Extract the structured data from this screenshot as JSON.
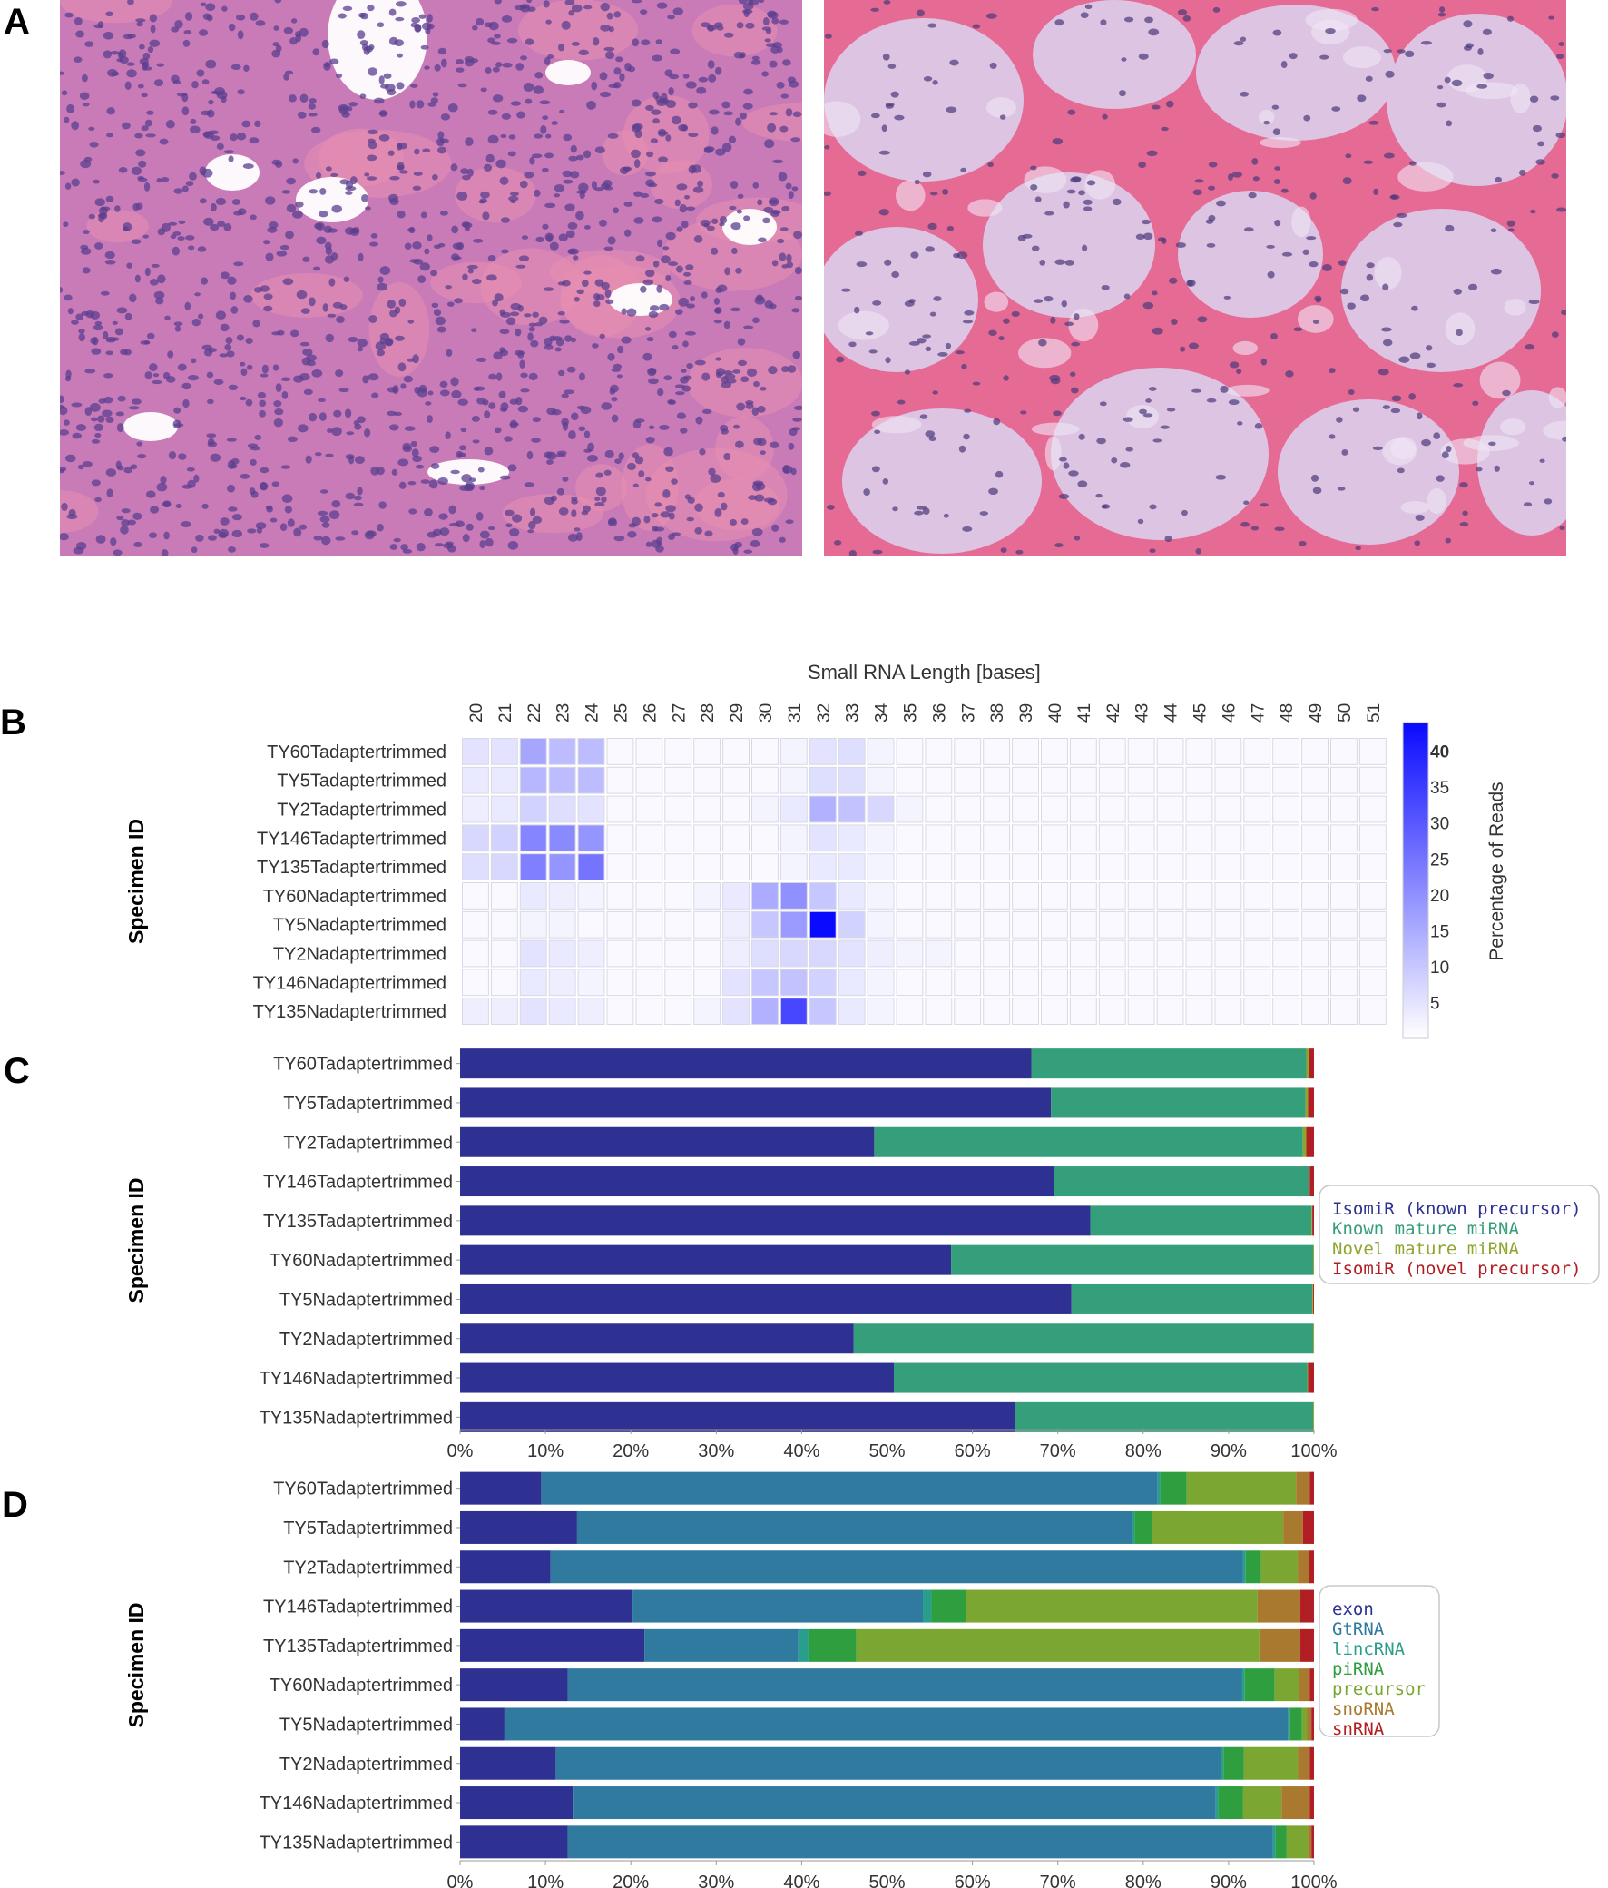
{
  "panels": {
    "a": "A",
    "b": "B",
    "c": "C",
    "d": "D"
  },
  "micrographs": [
    {
      "id": "left",
      "colors": {
        "background": "#c97bb8",
        "nuclei": "#5b3f8f",
        "stroma": "#e78fb0",
        "lumen": "#ffffff"
      }
    },
    {
      "id": "right",
      "colors": {
        "background": "#e5cde8",
        "colloid": "#ddc4e3",
        "stroma": "#e56a94",
        "nuclei": "#4b3a7a"
      }
    }
  ],
  "chart_data": [
    {
      "id": "B",
      "type": "heatmap",
      "title": "Small RNA Length [bases]",
      "ylabel": "Specimen ID",
      "x_categories": [
        "20",
        "21",
        "22",
        "23",
        "24",
        "25",
        "26",
        "27",
        "28",
        "29",
        "30",
        "31",
        "32",
        "33",
        "34",
        "35",
        "36",
        "37",
        "38",
        "39",
        "40",
        "41",
        "42",
        "43",
        "44",
        "45",
        "46",
        "47",
        "48",
        "49",
        "50",
        "51"
      ],
      "y_categories": [
        "TY60Tadaptertrimmed",
        "TY5Tadaptertrimmed",
        "TY2Tadaptertrimmed",
        "TY146Tadaptertrimmed",
        "TY135Tadaptertrimmed",
        "TY60Nadaptertrimmed",
        "TY5Nadaptertrimmed",
        "TY2Nadaptertrimmed",
        "TY146Nadaptertrimmed",
        "TY135Nadaptertrimmed"
      ],
      "values": [
        [
          5,
          5,
          16,
          12,
          12,
          1,
          1,
          1,
          1,
          1,
          1,
          2,
          5,
          6,
          2,
          1,
          1,
          1,
          1,
          1,
          1,
          1,
          1,
          1,
          1,
          1,
          1,
          1,
          1,
          1,
          1,
          1
        ],
        [
          4,
          4,
          13,
          12,
          12,
          1,
          1,
          1,
          1,
          1,
          1,
          2,
          6,
          6,
          2,
          1,
          1,
          1,
          1,
          1,
          1,
          1,
          1,
          1,
          1,
          1,
          1,
          1,
          1,
          1,
          1,
          1
        ],
        [
          3,
          4,
          8,
          6,
          5,
          1,
          1,
          1,
          1,
          1,
          2,
          4,
          14,
          11,
          7,
          2,
          1,
          1,
          1,
          1,
          1,
          1,
          1,
          1,
          1,
          1,
          1,
          1,
          1,
          1,
          1,
          1
        ],
        [
          7,
          8,
          22,
          21,
          19,
          1,
          1,
          1,
          1,
          1,
          1,
          2,
          5,
          4,
          2,
          1,
          1,
          1,
          1,
          1,
          1,
          1,
          1,
          1,
          1,
          1,
          1,
          1,
          1,
          1,
          1,
          1
        ],
        [
          6,
          7,
          23,
          19,
          25,
          1,
          1,
          1,
          1,
          1,
          1,
          2,
          4,
          4,
          2,
          1,
          1,
          1,
          1,
          1,
          1,
          1,
          1,
          1,
          1,
          1,
          1,
          1,
          1,
          1,
          1,
          1
        ],
        [
          1,
          1,
          4,
          3,
          2,
          1,
          1,
          1,
          2,
          4,
          15,
          20,
          10,
          4,
          2,
          1,
          1,
          1,
          1,
          1,
          1,
          1,
          1,
          1,
          1,
          1,
          1,
          1,
          1,
          1,
          1,
          1
        ],
        [
          1,
          1,
          2,
          2,
          1,
          1,
          1,
          1,
          1,
          3,
          10,
          18,
          44,
          8,
          2,
          1,
          1,
          1,
          1,
          1,
          1,
          1,
          1,
          1,
          1,
          1,
          1,
          1,
          1,
          1,
          1,
          1
        ],
        [
          1,
          1,
          5,
          4,
          3,
          1,
          1,
          1,
          1,
          3,
          6,
          7,
          7,
          5,
          3,
          2,
          2,
          1,
          1,
          1,
          1,
          1,
          1,
          1,
          1,
          1,
          1,
          1,
          1,
          1,
          1,
          1
        ],
        [
          1,
          1,
          4,
          3,
          2,
          1,
          1,
          1,
          1,
          5,
          10,
          11,
          8,
          4,
          2,
          1,
          1,
          1,
          1,
          1,
          1,
          1,
          1,
          1,
          1,
          1,
          1,
          1,
          1,
          1,
          1,
          1
        ],
        [
          3,
          3,
          5,
          4,
          3,
          1,
          1,
          1,
          2,
          5,
          14,
          33,
          10,
          4,
          2,
          1,
          1,
          1,
          1,
          1,
          1,
          1,
          1,
          1,
          1,
          1,
          1,
          1,
          1,
          1,
          1,
          1
        ]
      ],
      "colorbar": {
        "label": "Percentage of Reads",
        "ticks": [
          "5",
          "10",
          "15",
          "20",
          "25",
          "30",
          "35",
          "40"
        ],
        "range": [
          0,
          44
        ],
        "color_low": "#ffffff",
        "color_high": "#0a0aff"
      }
    },
    {
      "id": "C",
      "type": "bar",
      "stacked": true,
      "orientation": "horizontal",
      "ylabel": "Specimen ID",
      "categories": [
        "TY60Tadaptertrimmed",
        "TY5Tadaptertrimmed",
        "TY2Tadaptertrimmed",
        "TY146Tadaptertrimmed",
        "TY135Tadaptertrimmed",
        "TY60Nadaptertrimmed",
        "TY5Nadaptertrimmed",
        "TY2Nadaptertrimmed",
        "TY146Nadaptertrimmed",
        "TY135Nadaptertrimmed"
      ],
      "x_ticks": [
        "0%",
        "10%",
        "20%",
        "30%",
        "40%",
        "50%",
        "60%",
        "70%",
        "80%",
        "90%",
        "100%"
      ],
      "xlim": [
        0,
        100
      ],
      "legend_position": "right",
      "series": [
        {
          "name": "IsomiR (known precursor)",
          "color": "#2e3192",
          "values": [
            66.9,
            69.2,
            48.5,
            69.5,
            73.8,
            57.5,
            71.6,
            46.1,
            50.8,
            65.0
          ]
        },
        {
          "name": "Known mature miRNA",
          "color": "#359e7a",
          "values": [
            32.2,
            29.8,
            50.2,
            29.9,
            25.9,
            42.4,
            28.2,
            53.8,
            48.4,
            34.9
          ]
        },
        {
          "name": "Novel mature miRNA",
          "color": "#8fa62e",
          "values": [
            0.3,
            0.3,
            0.4,
            0.1,
            0.1,
            0.1,
            0.1,
            0.1,
            0.1,
            0.1
          ]
        },
        {
          "name": "IsomiR (novel precursor)",
          "color": "#b11e23",
          "values": [
            0.6,
            0.7,
            0.9,
            0.5,
            0.2,
            0.0,
            0.1,
            0.0,
            0.7,
            0.0
          ]
        }
      ]
    },
    {
      "id": "D",
      "type": "bar",
      "stacked": true,
      "orientation": "horizontal",
      "ylabel": "Specimen ID",
      "categories": [
        "TY60Tadaptertrimmed",
        "TY5Tadaptertrimmed",
        "TY2Tadaptertrimmed",
        "TY146Tadaptertrimmed",
        "TY135Tadaptertrimmed",
        "TY60Nadaptertrimmed",
        "TY5Nadaptertrimmed",
        "TY2Nadaptertrimmed",
        "TY146Nadaptertrimmed",
        "TY135Nadaptertrimmed"
      ],
      "x_ticks": [
        "0%",
        "10%",
        "20%",
        "30%",
        "40%",
        "50%",
        "60%",
        "70%",
        "80%",
        "90%",
        "100%"
      ],
      "xlim": [
        0,
        100
      ],
      "legend_position": "right",
      "series": [
        {
          "name": "exon",
          "color": "#2e3192",
          "values": [
            9.5,
            13.7,
            10.6,
            20.2,
            21.6,
            12.6,
            5.2,
            11.2,
            13.2,
            12.6
          ]
        },
        {
          "name": "GtRNA",
          "color": "#2f7a9e",
          "values": [
            72.2,
            65.0,
            81.1,
            34.0,
            18.0,
            79.0,
            91.8,
            77.9,
            75.3,
            82.6
          ]
        },
        {
          "name": "lincRNA",
          "color": "#2a9e8c",
          "values": [
            0.3,
            0.3,
            0.3,
            1.0,
            1.2,
            0.3,
            0.2,
            0.3,
            0.3,
            0.3
          ]
        },
        {
          "name": "piRNA",
          "color": "#2e9e3f",
          "values": [
            3.1,
            2.0,
            1.8,
            4.0,
            5.6,
            3.5,
            1.4,
            2.4,
            2.9,
            1.3
          ]
        },
        {
          "name": "precursor",
          "color": "#7ca632",
          "values": [
            12.8,
            15.4,
            4.3,
            34.2,
            47.2,
            2.8,
            0.6,
            6.3,
            4.5,
            2.5
          ]
        },
        {
          "name": "snoRNA",
          "color": "#a8792e",
          "values": [
            1.6,
            2.3,
            1.3,
            5.0,
            4.8,
            1.3,
            0.5,
            1.4,
            3.3,
            0.4
          ]
        },
        {
          "name": "snRNA",
          "color": "#b11e23",
          "values": [
            0.5,
            1.3,
            0.6,
            1.6,
            1.6,
            0.5,
            0.3,
            0.5,
            0.5,
            0.3
          ]
        }
      ]
    }
  ]
}
